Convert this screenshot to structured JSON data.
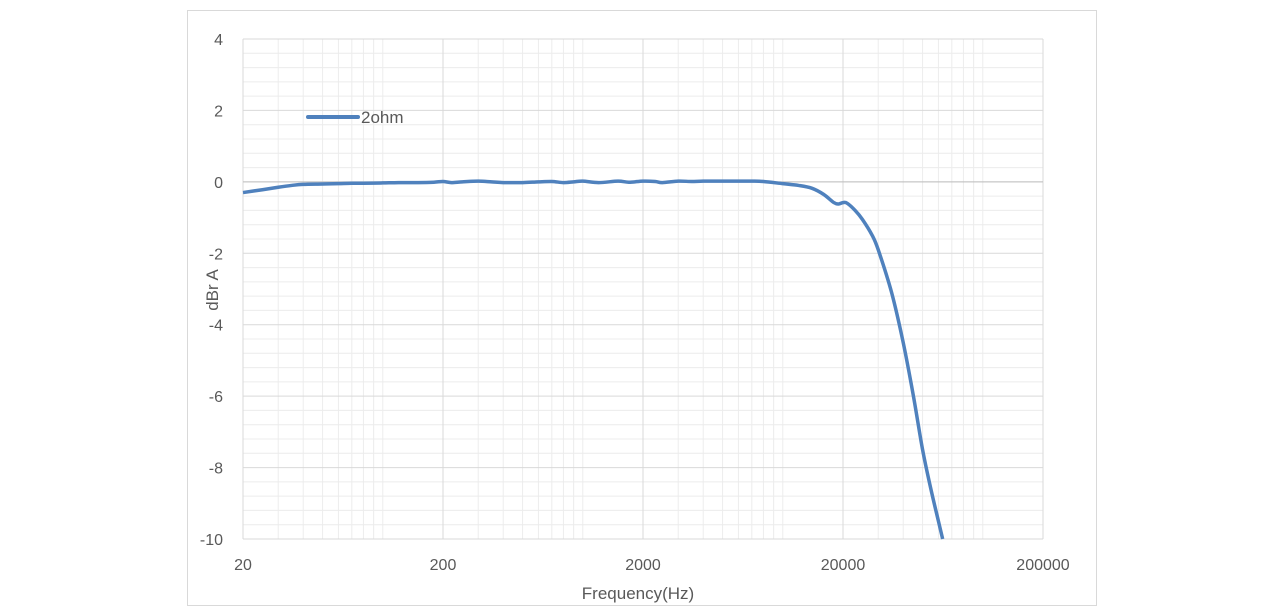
{
  "chart_data": {
    "type": "line",
    "xlabel": "Frequency(Hz)",
    "ylabel": "dBr A",
    "x_scale": "log",
    "xlim": [
      20,
      200000
    ],
    "ylim": [
      -10,
      4
    ],
    "x_ticks": [
      20,
      200,
      2000,
      20000,
      200000
    ],
    "x_tick_labels": [
      "20",
      "200",
      "2000",
      "20000",
      "200000"
    ],
    "y_ticks": [
      4,
      2,
      0,
      -2,
      -4,
      -6,
      -8,
      -10
    ],
    "y_tick_labels": [
      "4",
      "2",
      "0",
      "-2",
      "-4",
      "-6",
      "-8",
      "-10"
    ],
    "grid": true,
    "legend_position": "top-left",
    "series": [
      {
        "name": "2ohm",
        "color": "#4f81bd",
        "x": [
          20,
          25,
          30,
          35,
          40,
          50,
          60,
          70,
          80,
          100,
          120,
          150,
          180,
          200,
          220,
          250,
          300,
          350,
          400,
          500,
          600,
          700,
          800,
          900,
          1000,
          1200,
          1500,
          1700,
          2000,
          2300,
          2500,
          3000,
          3500,
          4000,
          5000,
          6000,
          7000,
          8000,
          10000,
          12000,
          14000,
          16000,
          18000,
          19000,
          20000,
          21000,
          23000,
          25000,
          28000,
          30000,
          35000,
          40000,
          45000,
          50000,
          55000,
          60000,
          63000
        ],
        "y": [
          -0.3,
          -0.22,
          -0.15,
          -0.1,
          -0.07,
          -0.06,
          -0.05,
          -0.04,
          -0.04,
          -0.03,
          -0.02,
          -0.02,
          -0.01,
          0.01,
          -0.02,
          0.0,
          0.02,
          0.0,
          -0.02,
          -0.02,
          0.0,
          0.01,
          -0.02,
          0.0,
          0.02,
          -0.02,
          0.02,
          -0.01,
          0.02,
          0.01,
          -0.02,
          0.02,
          0.01,
          0.02,
          0.02,
          0.02,
          0.02,
          0.01,
          -0.05,
          -0.1,
          -0.18,
          -0.35,
          -0.58,
          -0.62,
          -0.58,
          -0.6,
          -0.8,
          -1.05,
          -1.5,
          -1.9,
          -3.1,
          -4.5,
          -6.0,
          -7.5,
          -8.6,
          -9.5,
          -10.0
        ]
      }
    ]
  }
}
